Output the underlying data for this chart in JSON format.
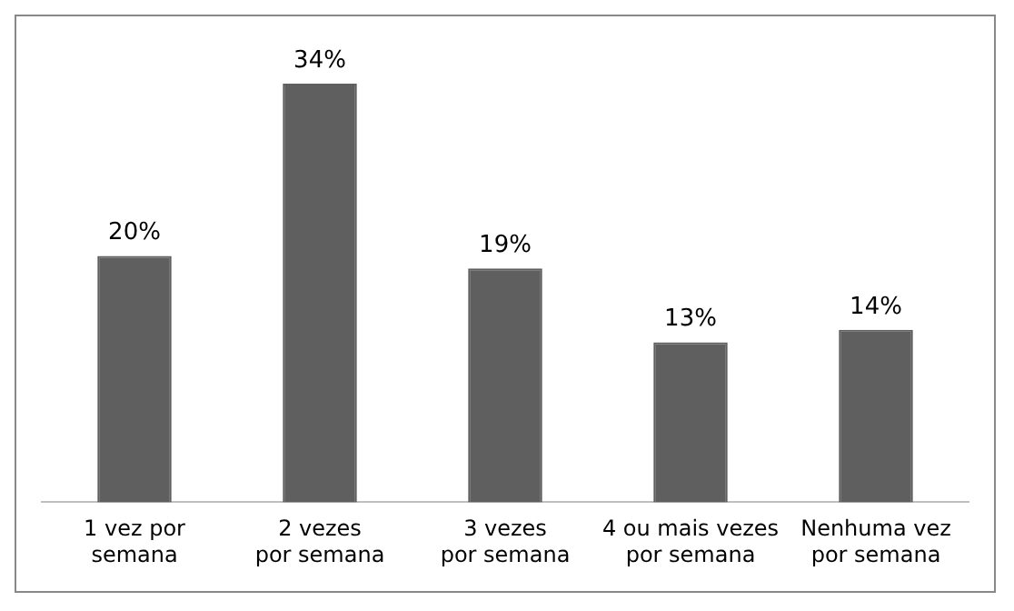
{
  "chart_data": {
    "type": "bar",
    "categories": [
      "1 vez por semana",
      "2 vezes por semana",
      "3 vezes por semana",
      "4 ou mais vezes por semana",
      "Nenhuma vez por semana"
    ],
    "values": [
      20,
      34,
      19,
      13,
      14
    ],
    "color": "#5f5f5f",
    "value_labels": [
      "20%",
      "34%",
      "19%",
      "13%",
      "14%"
    ],
    "tick_labels": "x",
    "grid": false,
    "legend": false
  }
}
